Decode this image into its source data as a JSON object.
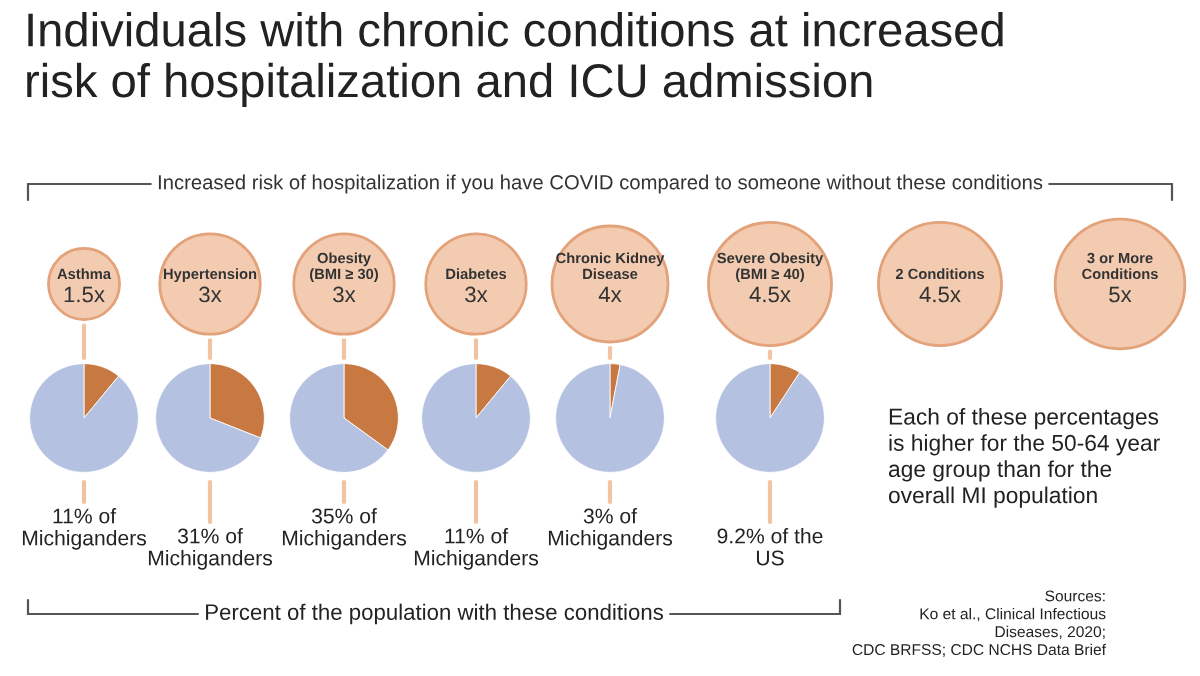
{
  "chart_data": [
    {
      "type": "other",
      "title": "Individuals with chronic conditions at increased\nrisk of hospitalization and ICU admission",
      "subtitle": "Increased risk of hospitalization if you have COVID compared to someone without these conditions",
      "categories": [
        "Asthma",
        "Hypertension",
        "Obesity\n(BMI ≥ 30)",
        "Diabetes",
        "Chronic Kidney\nDisease",
        "Severe Obesity\n(BMI ≥ 40)",
        "2 Conditions",
        "3 or More\nConditions"
      ],
      "values": [
        1.5,
        3,
        3,
        3,
        4,
        4.5,
        4.5,
        5
      ],
      "value_labels": [
        "1.5x",
        "3x",
        "3x",
        "3x",
        "4x",
        "4.5x",
        "4.5x",
        "5x"
      ],
      "color": "#f2cbb0"
    },
    {
      "type": "pie",
      "categories": [
        null,
        null
      ],
      "values": [
        11,
        89
      ],
      "colors": [
        "#c87941",
        "#b4c1e0"
      ],
      "annotations": [
        "11% of\nMichiganders"
      ]
    },
    {
      "type": "pie",
      "categories": [
        null,
        null
      ],
      "values": [
        31,
        69
      ],
      "colors": [
        "#c87941",
        "#b4c1e0"
      ],
      "annotations": [
        "31% of\nMichiganders"
      ]
    },
    {
      "type": "pie",
      "categories": [
        null,
        null
      ],
      "values": [
        35,
        65
      ],
      "colors": [
        "#c87941",
        "#b4c1e0"
      ],
      "annotations": [
        "35% of\nMichiganders"
      ]
    },
    {
      "type": "pie",
      "categories": [
        null,
        null
      ],
      "values": [
        11,
        89
      ],
      "colors": [
        "#c87941",
        "#b4c1e0"
      ],
      "annotations": [
        "11% of\nMichiganders"
      ]
    },
    {
      "type": "pie",
      "categories": [
        null,
        null
      ],
      "values": [
        3,
        97
      ],
      "colors": [
        "#c87941",
        "#b4c1e0"
      ],
      "annotations": [
        "3% of\nMichiganders"
      ]
    },
    {
      "type": "pie",
      "categories": [
        null,
        null
      ],
      "values": [
        9.2,
        90.8
      ],
      "colors": [
        "#c87941",
        "#b4c1e0"
      ],
      "annotations": [
        "9.2% of the\nUS"
      ]
    },
    {
      "type": "other",
      "annotations": [
        "Percent of the population with these conditions",
        "Each of these percentages\nis higher for the 50-64 year\nage group than for the\noverall MI population",
        "Sources:\nKo et al., Clinical Infectious\nDiseases, 2020;\nCDC BRFSS; CDC NCHS Data Brief"
      ]
    }
  ]
}
